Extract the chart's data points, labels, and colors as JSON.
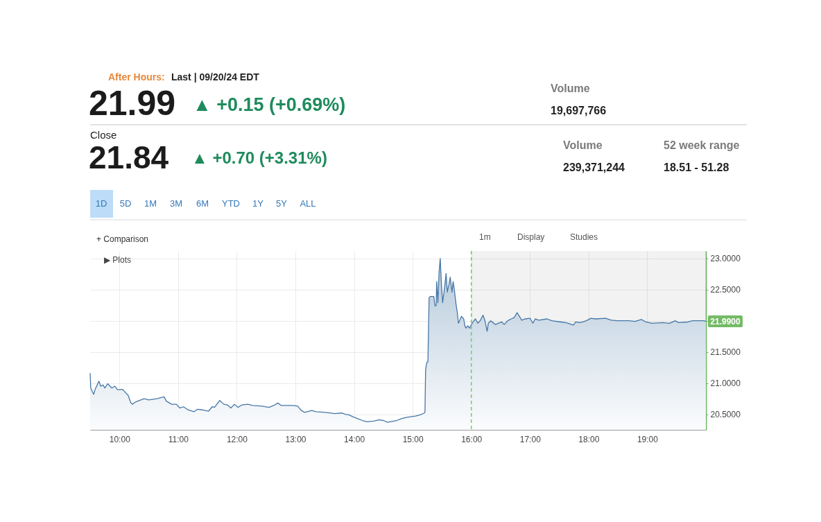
{
  "chart_data": {
    "type": "area",
    "x": [
      9.5,
      9.51,
      9.56,
      9.59,
      9.65,
      9.68,
      9.72,
      9.75,
      9.8,
      9.87,
      9.92,
      9.97,
      10.05,
      10.09,
      10.15,
      10.19,
      10.22,
      10.28,
      10.42,
      10.5,
      10.64,
      10.76,
      10.8,
      10.89,
      10.97,
      11.03,
      11.09,
      11.17,
      11.27,
      11.33,
      11.41,
      11.52,
      11.58,
      11.62,
      11.71,
      11.78,
      11.84,
      11.9,
      11.96,
      12.02,
      12.09,
      12.19,
      12.27,
      12.43,
      12.55,
      12.63,
      12.7,
      12.76,
      12.96,
      13.04,
      13.1,
      13.16,
      13.28,
      13.35,
      13.51,
      13.67,
      13.79,
      13.85,
      13.91,
      13.98,
      14.06,
      14.14,
      14.22,
      14.34,
      14.42,
      14.5,
      14.57,
      14.73,
      14.81,
      14.89,
      15.05,
      15.13,
      15.2,
      15.21,
      15.22,
      15.24,
      15.26,
      15.28,
      15.3,
      15.36,
      15.38,
      15.4,
      15.41,
      15.43,
      15.45,
      15.47,
      15.49,
      15.51,
      15.54,
      15.57,
      15.59,
      15.62,
      15.64,
      15.67,
      15.69,
      15.71,
      15.74,
      15.76,
      15.78,
      15.8,
      15.83,
      15.87,
      15.89,
      15.91,
      15.94,
      15.97,
      15.99,
      16.03,
      16.07,
      16.11,
      16.15,
      16.2,
      16.23,
      16.27,
      16.29,
      16.33,
      16.37,
      16.41,
      16.46,
      16.52,
      16.56,
      16.62,
      16.68,
      16.73,
      16.78,
      16.82,
      16.86,
      16.92,
      17.0,
      17.05,
      17.09,
      17.15,
      17.29,
      17.37,
      17.53,
      17.61,
      17.68,
      17.74,
      17.78,
      17.84,
      17.9,
      17.96,
      18.04,
      18.12,
      18.29,
      18.39,
      18.49,
      18.69,
      18.79,
      18.9,
      18.98,
      19.08,
      19.26,
      19.38,
      19.48,
      19.53,
      19.69,
      19.77,
      19.87,
      19.97,
      20.0
    ],
    "values": [
      21.16,
      20.92,
      20.82,
      20.91,
      21.03,
      20.95,
      20.97,
      20.92,
      20.99,
      20.92,
      20.95,
      20.89,
      20.9,
      20.86,
      20.8,
      20.69,
      20.66,
      20.7,
      20.75,
      20.73,
      20.75,
      20.78,
      20.71,
      20.66,
      20.66,
      20.6,
      20.62,
      20.57,
      20.54,
      20.58,
      20.57,
      20.55,
      20.62,
      20.61,
      20.72,
      20.66,
      20.65,
      20.6,
      20.66,
      20.61,
      20.65,
      20.66,
      20.64,
      20.63,
      20.61,
      20.64,
      20.68,
      20.64,
      20.64,
      20.63,
      20.56,
      20.53,
      20.56,
      20.54,
      20.53,
      20.51,
      20.52,
      20.5,
      20.49,
      20.46,
      20.43,
      20.4,
      20.38,
      20.39,
      20.41,
      20.4,
      20.37,
      20.4,
      20.43,
      20.45,
      20.47,
      20.49,
      20.52,
      20.54,
      21.21,
      21.33,
      21.34,
      22.37,
      22.39,
      22.39,
      22.24,
      22.24,
      22.63,
      22.29,
      22.78,
      23.0,
      22.59,
      22.29,
      22.5,
      22.76,
      22.46,
      22.59,
      22.7,
      22.46,
      22.63,
      22.5,
      22.26,
      22.14,
      21.96,
      22.0,
      22.07,
      22.03,
      21.92,
      21.88,
      21.92,
      21.88,
      21.92,
      21.98,
      22.03,
      21.96,
      22.0,
      22.09,
      22.01,
      21.83,
      21.96,
      22.0,
      21.97,
      21.94,
      21.96,
      21.98,
      21.94,
      22.0,
      22.03,
      22.05,
      22.13,
      22.07,
      22.01,
      22.03,
      22.04,
      21.96,
      22.03,
      22.01,
      22.03,
      22.0,
      21.98,
      21.97,
      21.95,
      21.93,
      21.98,
      21.97,
      21.98,
      22.0,
      22.04,
      22.03,
      22.04,
      22.01,
      22.0,
      22.0,
      21.99,
      22.02,
      21.98,
      21.96,
      21.97,
      21.96,
      22.0,
      21.97,
      21.98,
      22.0,
      22.0,
      22.0,
      21.99
    ],
    "color": "#4677a6",
    "xlim": [
      9.5,
      20
    ],
    "ylim": [
      20.25,
      23.12
    ],
    "xticks": [
      {
        "value": 10,
        "label": "10:00"
      },
      {
        "value": 11,
        "label": "11:00"
      },
      {
        "value": 12,
        "label": "12:00"
      },
      {
        "value": 13,
        "label": "13:00"
      },
      {
        "value": 14,
        "label": "14:00"
      },
      {
        "value": 15,
        "label": "15:00"
      },
      {
        "value": 16,
        "label": "16:00"
      },
      {
        "value": 17,
        "label": "17:00"
      },
      {
        "value": 18,
        "label": "18:00"
      },
      {
        "value": 19,
        "label": "19:00"
      }
    ],
    "yticks": [
      {
        "value": 20.5,
        "label": "20.5000"
      },
      {
        "value": 21,
        "label": "21.0000"
      },
      {
        "value": 21.5,
        "label": "21.5000"
      },
      {
        "value": 22,
        "label": null
      },
      {
        "value": 22.5,
        "label": "22.5000"
      },
      {
        "value": 23,
        "label": "23.0000"
      }
    ],
    "grid": true,
    "bands": [
      {
        "axis": "x",
        "from": 16,
        "to": 20,
        "color": "#f2f2f2"
      }
    ],
    "ref_lines": [
      {
        "axis": "x",
        "value": 16,
        "color": "#7dca70",
        "line_style": "dashed"
      }
    ],
    "annotations": [
      "After Hours:",
      "Last | 09/20/24 EDT",
      "21.99",
      "▲ +0.15 (+0.69%)",
      "Close",
      "21.84",
      "▲ +0.70 (+3.31%)",
      "Volume",
      "19,697,766",
      "Volume",
      "239,371,244",
      "52 week range",
      "18.51 - 51.28",
      "1D",
      "5D",
      "1M",
      "3M",
      "6M",
      "YTD",
      "1Y",
      "5Y",
      "ALL",
      "+ Comparison",
      "1m",
      "Display",
      "Studies",
      "▶ Plots",
      {
        "text": "21.9900",
        "x": 20,
        "y": 21.99
      }
    ]
  }
}
